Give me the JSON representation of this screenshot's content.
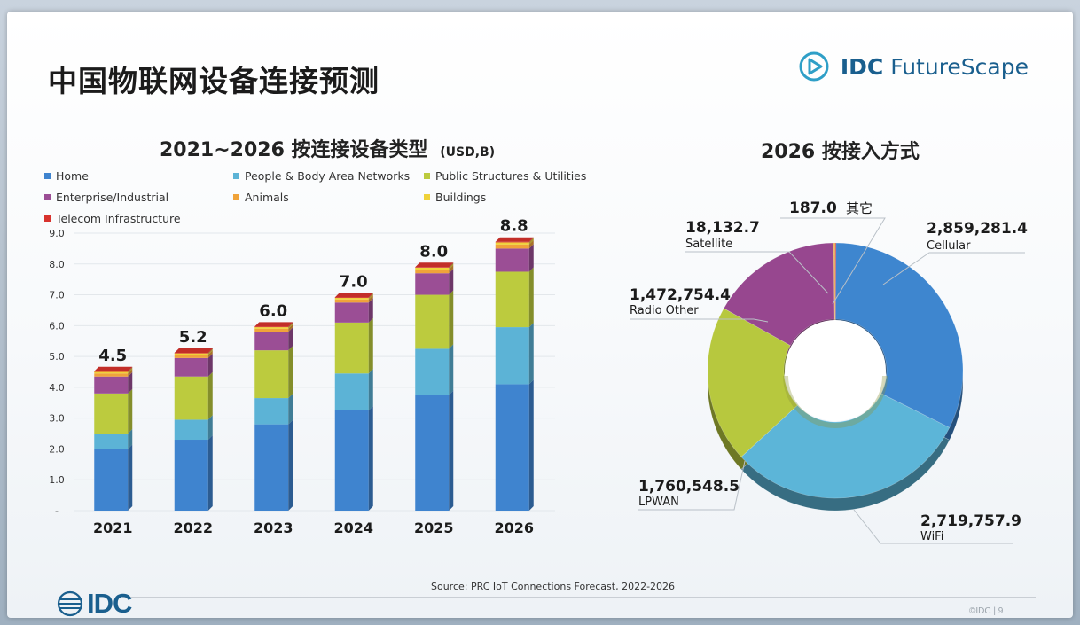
{
  "slide": {
    "title": "中国物联网设备连接预测",
    "brand": {
      "idc": "IDC",
      "product": "FutureScape"
    },
    "source": "Source: PRC IoT Connections Forecast, 2022-2026",
    "footer_logo": "IDC",
    "page_num": "©IDC |  9"
  },
  "chart_data": [
    {
      "type": "bar",
      "stacked": true,
      "title": "2021~2026 按连接设备类型",
      "unit": "(USD,B)",
      "categories": [
        "2021",
        "2022",
        "2023",
        "2024",
        "2025",
        "2026"
      ],
      "totals": [
        "4.5",
        "5.2",
        "6.0",
        "7.0",
        "8.0",
        "8.8"
      ],
      "ylim": [
        0,
        9.0
      ],
      "yticks": [
        "-",
        "1.0",
        "2.0",
        "3.0",
        "4.0",
        "5.0",
        "6.0",
        "7.0",
        "8.0",
        "9.0"
      ],
      "grid": true,
      "legend_position": "top",
      "series": [
        {
          "name": "Home",
          "color": "#3f84cf",
          "values": [
            2.0,
            2.3,
            2.8,
            3.25,
            3.75,
            4.1
          ]
        },
        {
          "name": "People & Body Area Networks",
          "color": "#5cb3d6",
          "values": [
            0.5,
            0.65,
            0.85,
            1.2,
            1.5,
            1.85
          ]
        },
        {
          "name": "Public Structures & Utilities",
          "color": "#bccb3e",
          "values": [
            1.3,
            1.4,
            1.55,
            1.65,
            1.75,
            1.8
          ]
        },
        {
          "name": "Enterprise/Industrial",
          "color": "#9b4e95",
          "values": [
            0.55,
            0.6,
            0.6,
            0.65,
            0.7,
            0.75
          ]
        },
        {
          "name": "Animals",
          "color": "#f0a33a",
          "values": [
            0.1,
            0.1,
            0.1,
            0.1,
            0.12,
            0.13
          ]
        },
        {
          "name": "Buildings",
          "color": "#efd23a",
          "values": [
            0.05,
            0.05,
            0.05,
            0.05,
            0.06,
            0.07
          ]
        },
        {
          "name": "Telecom Infrastructure",
          "color": "#d8332e",
          "values": [
            0.02,
            0.02,
            0.02,
            0.02,
            0.02,
            0.02
          ]
        }
      ]
    },
    {
      "type": "pie",
      "donut": true,
      "title": "2026 按接入方式",
      "slices": [
        {
          "name": "Cellular",
          "value": 2859281.4,
          "value_label": "2,859,281.4",
          "color": "#3e86cf"
        },
        {
          "name": "WiFi",
          "value": 2719757.9,
          "value_label": "2,719,757.9",
          "color": "#5cb5d8"
        },
        {
          "name": "LPWAN",
          "value": 1760548.5,
          "value_label": "1,760,548.5",
          "color": "#b7c83e"
        },
        {
          "name": "Radio Other",
          "value": 1472754.4,
          "value_label": "1,472,754.4",
          "color": "#97478f"
        },
        {
          "name": "Satellite",
          "value": 18132.7,
          "value_label": "18,132.7",
          "color": "#e8a03a"
        },
        {
          "name": "其它",
          "value": 187.0,
          "value_label": "187.0",
          "color": "#d8332e"
        }
      ]
    }
  ]
}
